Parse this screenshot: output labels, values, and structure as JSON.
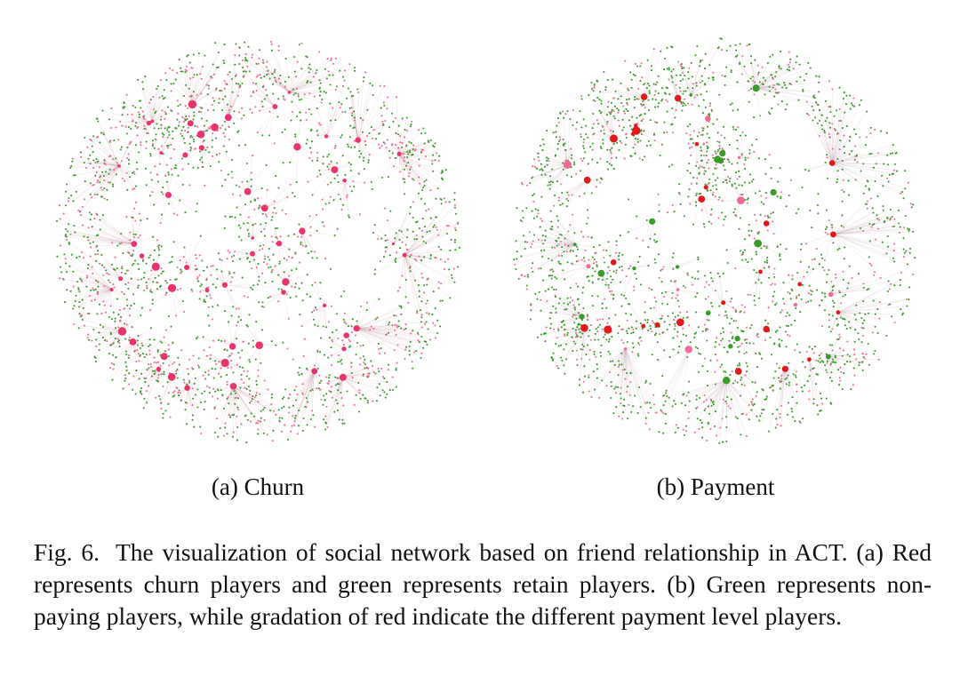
{
  "figure": {
    "panels": [
      {
        "id": "a",
        "subcaption": "(a) Churn",
        "node_color_primary": "#e8336b",
        "node_color_secondary": "#3a9a2a",
        "edge_color": "#c8a0a8"
      },
      {
        "id": "b",
        "subcaption": "(b) Payment",
        "node_color_primary": "#3a9a2a",
        "node_color_secondary": "#e01a1a",
        "edge_color": "#c8b0b8"
      }
    ]
  },
  "caption": {
    "label": "Fig. 6.",
    "text": "The visualization of social network based on friend relationship in ACT. (a) Red represents churn players and green represents retain players. (b) Green represents non-paying players, while gradation of red indicate the different payment level players."
  }
}
